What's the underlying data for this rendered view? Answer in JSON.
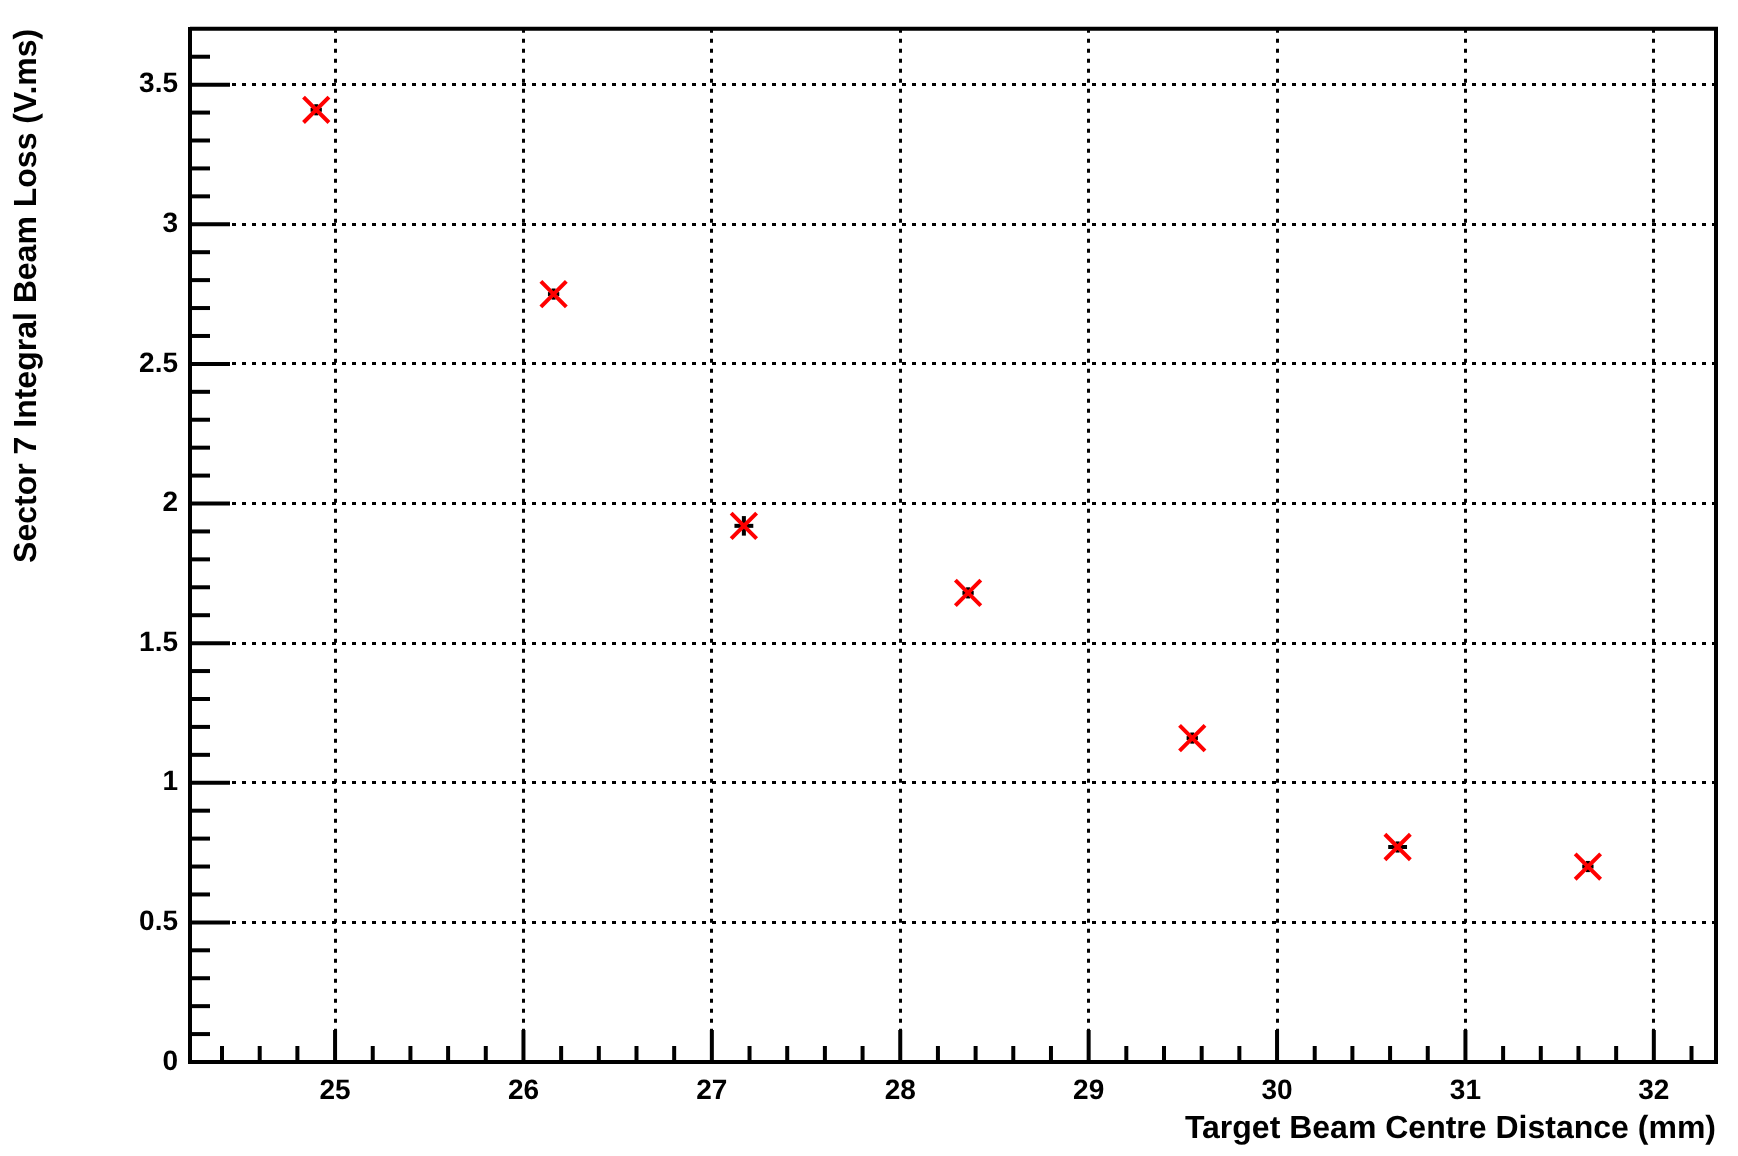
{
  "chart_data": {
    "type": "scatter",
    "xlabel": "Target Beam Centre Distance (mm)",
    "ylabel": "Sector 7 Integral Beam Loss (V.ms)",
    "xlim": [
      24.23,
      32.33
    ],
    "ylim": [
      0,
      3.7
    ],
    "xticks": [
      {
        "value": 24.4,
        "label": null
      },
      {
        "value": 24.6,
        "label": null
      },
      {
        "value": 24.8,
        "label": null
      },
      25,
      {
        "value": 25.2,
        "label": null
      },
      {
        "value": 25.4,
        "label": null
      },
      {
        "value": 25.6,
        "label": null
      },
      {
        "value": 25.8,
        "label": null
      },
      26,
      {
        "value": 26.2,
        "label": null
      },
      {
        "value": 26.4,
        "label": null
      },
      {
        "value": 26.6,
        "label": null
      },
      {
        "value": 26.8,
        "label": null
      },
      27,
      {
        "value": 27.2,
        "label": null
      },
      {
        "value": 27.4,
        "label": null
      },
      {
        "value": 27.6,
        "label": null
      },
      {
        "value": 27.8,
        "label": null
      },
      28,
      {
        "value": 28.2,
        "label": null
      },
      {
        "value": 28.4,
        "label": null
      },
      {
        "value": 28.6,
        "label": null
      },
      {
        "value": 28.8,
        "label": null
      },
      29,
      {
        "value": 29.2,
        "label": null
      },
      {
        "value": 29.4,
        "label": null
      },
      {
        "value": 29.6,
        "label": null
      },
      {
        "value": 29.8,
        "label": null
      },
      30,
      {
        "value": 30.2,
        "label": null
      },
      {
        "value": 30.4,
        "label": null
      },
      {
        "value": 30.6,
        "label": null
      },
      {
        "value": 30.8,
        "label": null
      },
      31,
      {
        "value": 31.2,
        "label": null
      },
      {
        "value": 31.4,
        "label": null
      },
      {
        "value": 31.6,
        "label": null
      },
      {
        "value": 31.8,
        "label": null
      },
      32,
      {
        "value": 32.2,
        "label": null
      }
    ],
    "yticks": [
      0,
      {
        "value": 0.1,
        "label": null
      },
      {
        "value": 0.2,
        "label": null
      },
      {
        "value": 0.3,
        "label": null
      },
      {
        "value": 0.4,
        "label": null
      },
      0.5,
      {
        "value": 0.6,
        "label": null
      },
      {
        "value": 0.7,
        "label": null
      },
      {
        "value": 0.8,
        "label": null
      },
      {
        "value": 0.9,
        "label": null
      },
      1,
      {
        "value": 1.1,
        "label": null
      },
      {
        "value": 1.2,
        "label": null
      },
      {
        "value": 1.3,
        "label": null
      },
      {
        "value": 1.4,
        "label": null
      },
      1.5,
      {
        "value": 1.6,
        "label": null
      },
      {
        "value": 1.7,
        "label": null
      },
      {
        "value": 1.8,
        "label": null
      },
      {
        "value": 1.9,
        "label": null
      },
      2,
      {
        "value": 2.1,
        "label": null
      },
      {
        "value": 2.2,
        "label": null
      },
      {
        "value": 2.3,
        "label": null
      },
      {
        "value": 2.4,
        "label": null
      },
      2.5,
      {
        "value": 2.6,
        "label": null
      },
      {
        "value": 2.7,
        "label": null
      },
      {
        "value": 2.8,
        "label": null
      },
      {
        "value": 2.9,
        "label": null
      },
      3,
      {
        "value": 3.1,
        "label": null
      },
      {
        "value": 3.2,
        "label": null
      },
      {
        "value": 3.3,
        "label": null
      },
      {
        "value": 3.4,
        "label": null
      },
      3.5,
      {
        "value": 3.6,
        "label": null
      }
    ],
    "grid": true,
    "marker": "cross",
    "series": [
      {
        "color": "#ff0000",
        "x": [
          24.9,
          26.16,
          27.17,
          28.36,
          29.55,
          30.64,
          31.65
        ],
        "values": [
          3.41,
          2.75,
          1.92,
          1.68,
          1.16,
          0.77,
          0.7
        ],
        "errors": [
          0.02,
          0.02,
          0.035,
          0.02,
          0.02,
          0.02,
          0.02
        ],
        "xerrors": [
          0.03,
          0.03,
          0.05,
          0.03,
          0.03,
          0.05,
          0.03
        ]
      }
    ]
  }
}
